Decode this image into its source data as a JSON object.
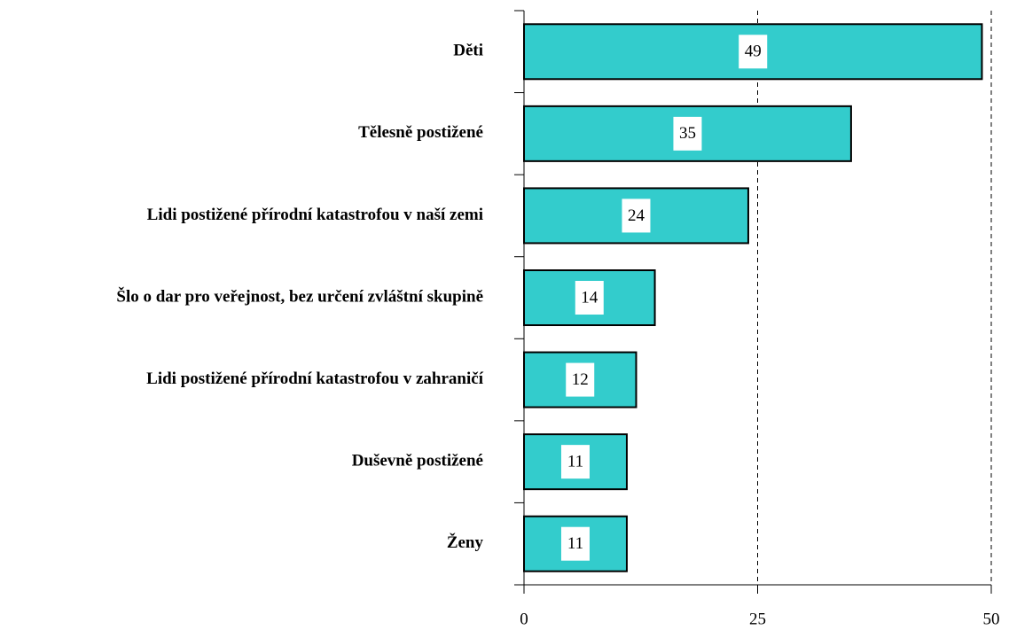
{
  "chart_data": {
    "type": "barh",
    "categories": [
      "Děti",
      "Tělesně postižené",
      "Lidi postižené přírodní katastrofou v naší zemi",
      "Šlo o dar pro veřejnost, bez určení zvláštní skupině",
      "Lidi postižené přírodní katastrofou v zahraničí",
      "Duševně postižené",
      "Ženy"
    ],
    "values": [
      49,
      35,
      24,
      14,
      12,
      11,
      11
    ],
    "color": "#33cccc",
    "xlim": [
      0,
      50
    ],
    "xticks": [
      0,
      25,
      50
    ],
    "grid": true
  }
}
